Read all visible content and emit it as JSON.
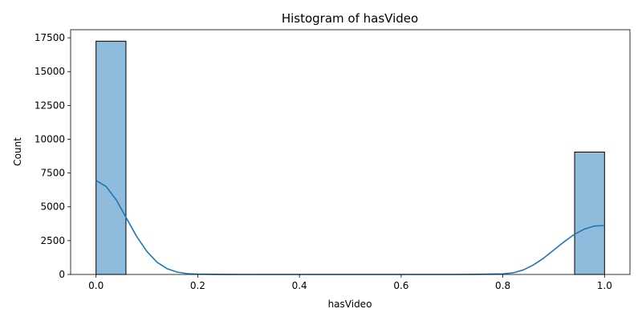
{
  "chart_data": {
    "type": "bar",
    "title": "Histogram of hasVideo",
    "xlabel": "hasVideo",
    "ylabel": "Count",
    "xlim": [
      -0.05,
      1.05
    ],
    "ylim": [
      0,
      18100
    ],
    "x_ticks": [
      0.0,
      0.2,
      0.4,
      0.6,
      0.8,
      1.0
    ],
    "x_tick_labels": [
      "0.0",
      "0.2",
      "0.4",
      "0.6",
      "0.8",
      "1.0"
    ],
    "y_ticks": [
      0,
      2500,
      5000,
      7500,
      10000,
      12500,
      15000,
      17500
    ],
    "y_tick_labels": [
      "0",
      "2500",
      "5000",
      "7500",
      "10000",
      "12500",
      "15000",
      "17500"
    ],
    "bins": [
      {
        "x0": 0.0,
        "x1": 0.0588,
        "count": 17250
      },
      {
        "x0": 0.9412,
        "x1": 1.0,
        "count": 9050
      }
    ],
    "kde": {
      "x": [
        0.0,
        0.02,
        0.04,
        0.06,
        0.08,
        0.1,
        0.12,
        0.14,
        0.16,
        0.18,
        0.2,
        0.25,
        0.3,
        0.4,
        0.5,
        0.6,
        0.7,
        0.75,
        0.8,
        0.82,
        0.84,
        0.86,
        0.88,
        0.9,
        0.92,
        0.94,
        0.96,
        0.98,
        1.0
      ],
      "y": [
        6950,
        6500,
        5500,
        4150,
        2800,
        1700,
        900,
        420,
        170,
        60,
        20,
        5,
        0,
        0,
        0,
        0,
        0,
        10,
        40,
        120,
        330,
        700,
        1200,
        1800,
        2400,
        2950,
        3350,
        3580,
        3620
      ]
    },
    "colors": {
      "bar_fill": "#8fbbdc",
      "bar_edge": "#000000",
      "kde_line": "#1f77b4"
    },
    "grid": false
  }
}
